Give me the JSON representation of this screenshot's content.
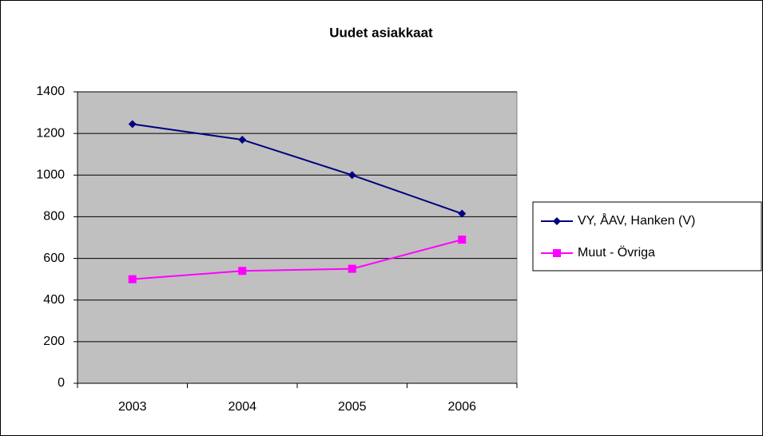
{
  "chart_data": {
    "type": "line",
    "title": "Uudet asiakkaat",
    "categories": [
      "2003",
      "2004",
      "2005",
      "2006"
    ],
    "series": [
      {
        "name": "VY, ÅAV, Hanken (V)",
        "color": "#000080",
        "marker": "diamond",
        "values": [
          1245,
          1170,
          1000,
          815
        ]
      },
      {
        "name": "Muut - Övriga",
        "color": "#ff00ff",
        "marker": "square",
        "values": [
          500,
          540,
          550,
          690
        ]
      }
    ],
    "ylim": [
      0,
      1400
    ],
    "yticks": [
      0,
      200,
      400,
      600,
      800,
      1000,
      1200,
      1400
    ],
    "grid": true,
    "legend": "right"
  }
}
